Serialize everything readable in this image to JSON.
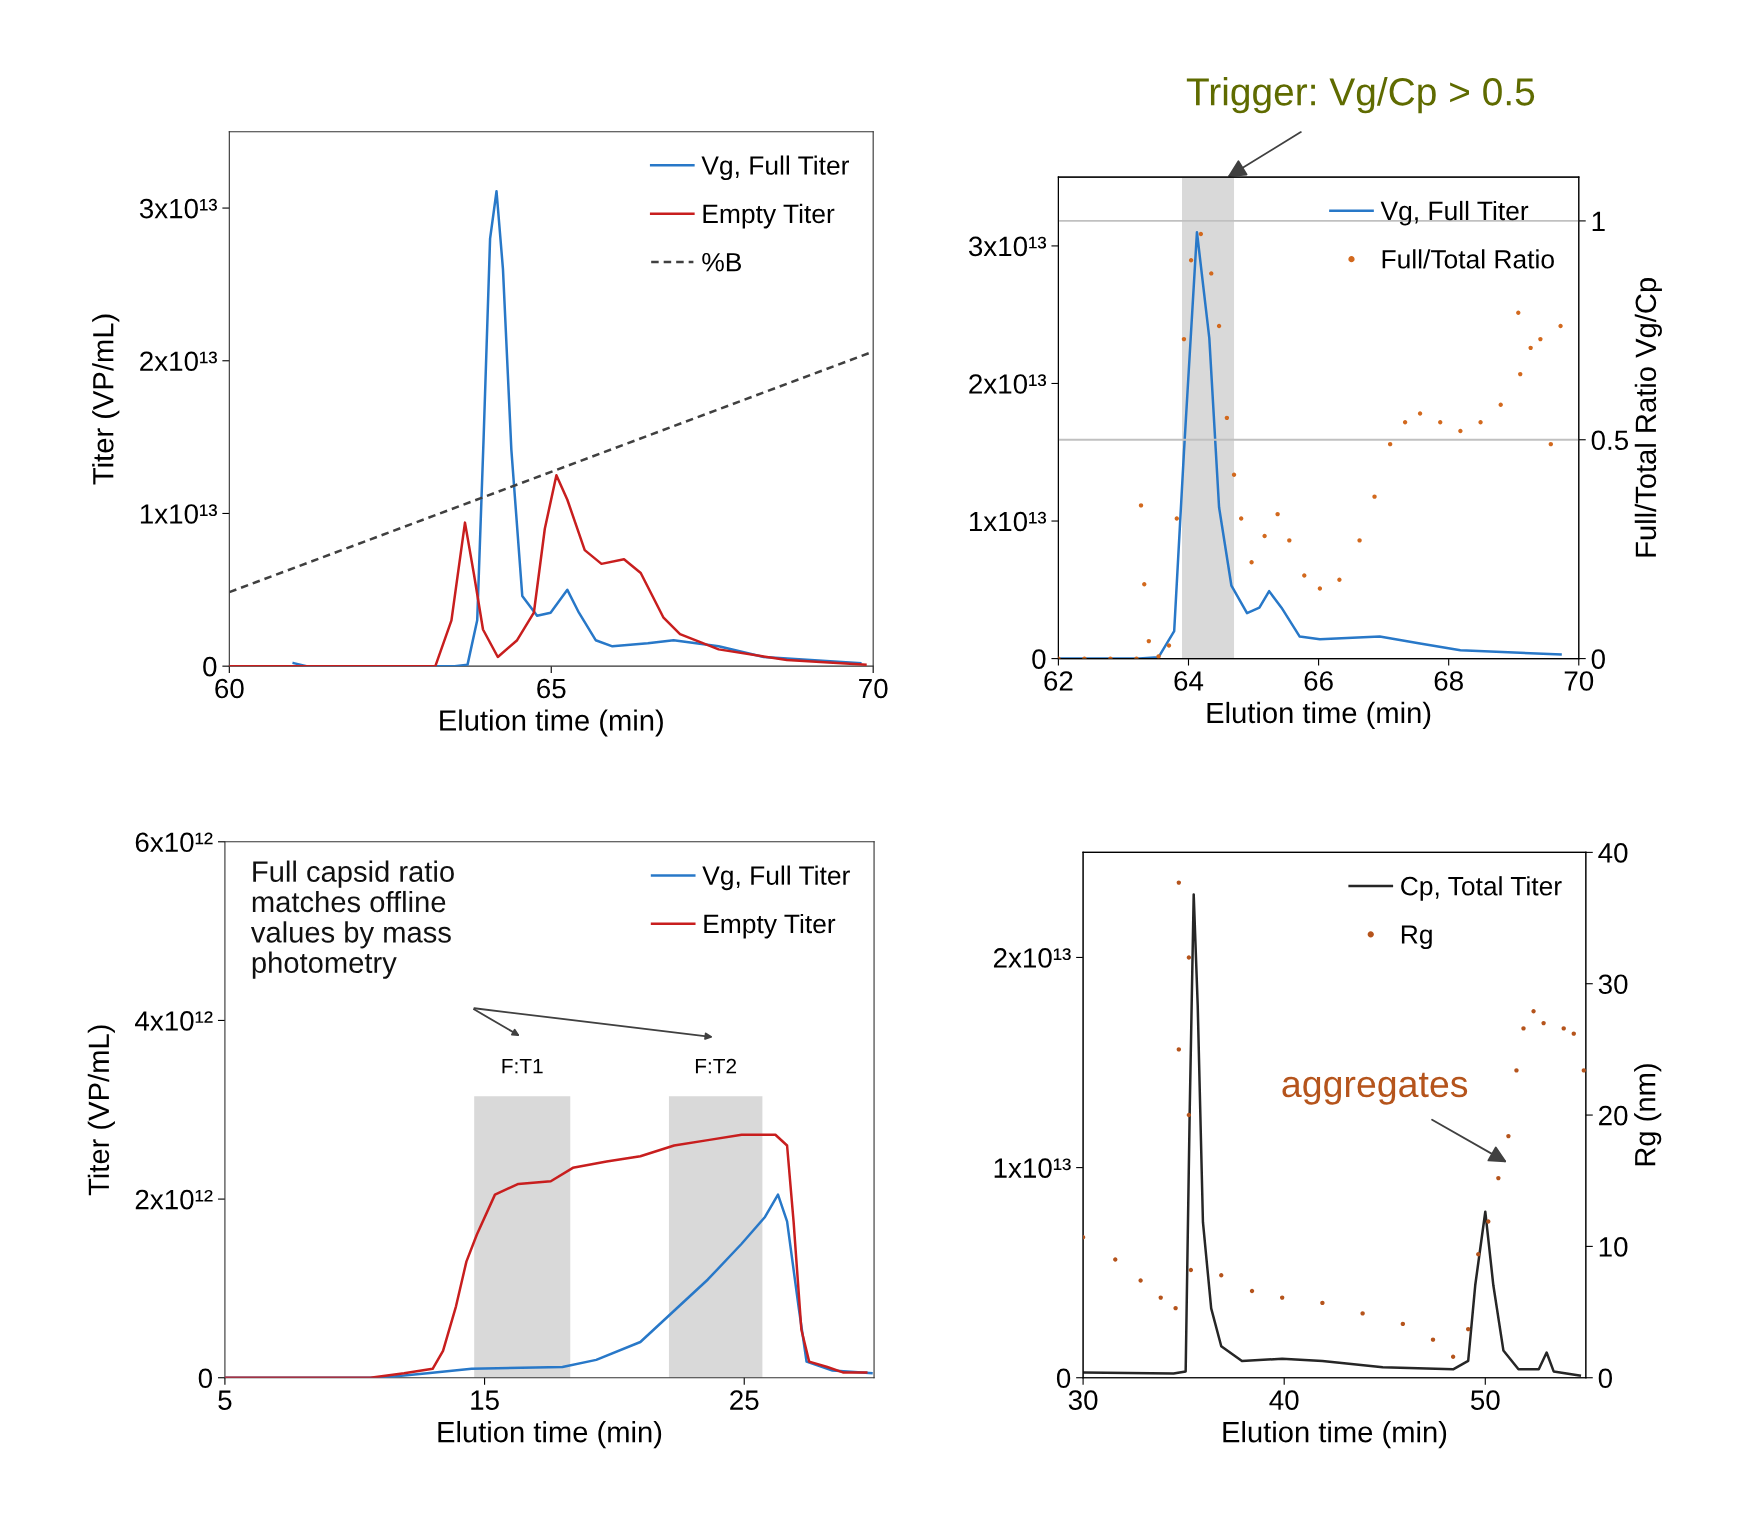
{
  "chart_data": [
    {
      "type": "line",
      "xlabel": "Elution time (min)",
      "ylabel": "Titer (VP/mL)",
      "xlim": [
        60,
        70
      ],
      "xticks": [
        60,
        65,
        70
      ],
      "ylim": [
        0,
        35000000000000.0
      ],
      "yticks": [
        0,
        {
          "value": 10000000000000.0,
          "label": "1x10¹³"
        },
        {
          "value": 20000000000000.0,
          "label": "2x10¹³"
        },
        {
          "value": 30000000000000.0,
          "label": "3x10¹³"
        }
      ],
      "legend": "top right",
      "series": [
        {
          "name": "Vg, Full Titer",
          "color": "#2878c8",
          "x": [
            61,
            61.2,
            63.5,
            63.7,
            63.85,
            63.95,
            64.05,
            64.15,
            64.25,
            64.38,
            64.55,
            64.78,
            64.99,
            65.25,
            65.43,
            65.69,
            65.95,
            66.5,
            66.9,
            67.6,
            68.3,
            69.8
          ],
          "values": [
            200000000000.0,
            0,
            0,
            100000000000.0,
            3000000000000.0,
            15000000000000.0,
            28000000000000.0,
            31100000000000.0,
            26000000000000.0,
            14200000000000.0,
            4600000000000.0,
            3300000000000.0,
            3500000000000.0,
            5000000000000.0,
            3500000000000.0,
            1700000000000.0,
            1300000000000.0,
            1500000000000.0,
            1700000000000.0,
            1300000000000.0,
            600000000000.0,
            200000000000.0
          ]
        },
        {
          "name": "Empty Titer",
          "color": "#c81e1e",
          "x": [
            60,
            63.2,
            63.45,
            63.66,
            63.8,
            63.94,
            64.17,
            64.47,
            64.73,
            64.9,
            65.08,
            65.25,
            65.52,
            65.78,
            66.13,
            66.39,
            66.74,
            67.0,
            67.6,
            68.66,
            69.88
          ],
          "values": [
            0,
            0,
            3000000000000.0,
            9400000000000.0,
            6000000000000.0,
            2400000000000.0,
            600000000000.0,
            1700000000000.0,
            3500000000000.0,
            9000000000000.0,
            12500000000000.0,
            10900000000000.0,
            7600000000000.0,
            6700000000000.0,
            7000000000000.0,
            6100000000000.0,
            3200000000000.0,
            2100000000000.0,
            1100000000000.0,
            400000000000.0,
            100000000000.0
          ]
        },
        {
          "name": "%B",
          "color": "#404040",
          "line_style": "dashed",
          "x": [
            60,
            70
          ],
          "values": [
            4850000000000.0,
            20600000000000.0
          ]
        }
      ]
    },
    {
      "type": "line",
      "xlabel": "Elution time (min)",
      "y2label": "Full/Total Ratio Vg/Cp",
      "xlim": [
        62,
        70
      ],
      "xticks": [
        62,
        64,
        66,
        68,
        70
      ],
      "ylim": [
        0,
        35000000000000.0
      ],
      "yticks": [
        0,
        {
          "value": 10000000000000.0,
          "label": "1x10¹³"
        },
        {
          "value": 20000000000000.0,
          "label": "2x10¹³"
        },
        {
          "value": 30000000000000.0,
          "label": "3x10¹³"
        }
      ],
      "y2lim": [
        0,
        1.1
      ],
      "y2ticks": [
        0,
        0.5,
        1
      ],
      "legend": "top right",
      "annotations": [
        {
          "text": "Trigger: Vg/Cp > 0.5",
          "x": 64.6,
          "y": 35000000000000.0
        }
      ],
      "bands": [
        {
          "axis": "x",
          "from": 63.9,
          "to": 64.7,
          "color": "#d9d9d9"
        }
      ],
      "ref_lines": [
        {
          "axis": "y2",
          "value": 1,
          "color": "#c0c0c0"
        },
        {
          "axis": "y2",
          "value": 0.5,
          "color": "#c0c0c0"
        }
      ],
      "series": [
        {
          "name": "Vg, Full Titer",
          "color": "#2878c8",
          "x": [
            62,
            63.24,
            63.54,
            63.78,
            63.93,
            64.13,
            64.32,
            64.47,
            64.66,
            64.9,
            65.09,
            65.24,
            65.43,
            65.71,
            66.02,
            66.94,
            67.56,
            68.18,
            69.72
          ],
          "values": [
            0,
            0,
            100000000000.0,
            2000000000000.0,
            15000000000000.0,
            31000000000000.0,
            23300000000000.0,
            11000000000000.0,
            5300000000000.0,
            3300000000000.0,
            3700000000000.0,
            4900000000000.0,
            3700000000000.0,
            1600000000000.0,
            1400000000000.0,
            1600000000000.0,
            1100000000000.0,
            600000000000.0,
            300000000000.0
          ]
        },
        {
          "name": "Full/Total Ratio",
          "type": "scatter",
          "axis": "y2",
          "marker": "circle",
          "color": "#d2691e",
          "x": [
            62,
            62.4,
            62.8,
            63.2,
            63.27,
            63.32,
            63.39,
            63.54,
            63.7,
            63.82,
            63.93,
            64.04,
            64.19,
            64.35,
            64.47,
            64.59,
            64.7,
            64.81,
            64.97,
            65.17,
            65.37,
            65.55,
            65.78,
            66.02,
            66.32,
            66.63,
            66.86,
            67.1,
            67.33,
            67.56,
            67.87,
            68.18,
            68.49,
            68.8,
            69.07,
            69.1,
            69.26,
            69.41,
            69.57,
            69.72
          ],
          "values": [
            0,
            0,
            0,
            0,
            0.35,
            0.17,
            0.04,
            0.005,
            0.03,
            0.32,
            0.73,
            0.91,
            0.97,
            0.88,
            0.76,
            0.55,
            0.42,
            0.32,
            0.22,
            0.28,
            0.33,
            0.27,
            0.19,
            0.16,
            0.18,
            0.27,
            0.37,
            0.49,
            0.54,
            0.56,
            0.54,
            0.52,
            0.54,
            0.58,
            0.79,
            0.65,
            0.71,
            0.73,
            0.49,
            0.76
          ]
        }
      ]
    },
    {
      "type": "line",
      "xlabel": "Elution time (min)",
      "ylabel": "Titer (VP/mL)",
      "xlim": [
        5,
        30
      ],
      "xticks": [
        5,
        15,
        25
      ],
      "ylim": [
        0,
        6000000000000.0
      ],
      "yticks": [
        0,
        {
          "value": 2000000000000.0,
          "label": "2x10¹²"
        },
        {
          "value": 4000000000000.0,
          "label": "4x10¹²"
        },
        {
          "value": 6000000000000.0,
          "label": "6x10¹²"
        }
      ],
      "legend": "top right",
      "annotations": [
        "Full capsid ratio\nmatches offline\nvalues by mass\nphotometry"
      ],
      "bands": [
        {
          "axis": "x",
          "from": 14.6,
          "to": 18.3,
          "label": "F:T1",
          "color": "#d9d9d9"
        },
        {
          "axis": "x",
          "from": 22.1,
          "to": 25.7,
          "label": "F:T2",
          "color": "#d9d9d9"
        }
      ],
      "series": [
        {
          "name": "Vg, Full Titer",
          "color": "#2878c8",
          "x": [
            5,
            11,
            12.8,
            14.5,
            18.0,
            19.3,
            21.0,
            22.3,
            23.6,
            24.9,
            25.8,
            26.3,
            26.65,
            27.1,
            27.4,
            28.4,
            29.9
          ],
          "values": [
            0,
            0,
            50000000000.0,
            100000000000.0,
            120000000000.0,
            200000000000.0,
            400000000000.0,
            750000000000.0,
            1100000000000.0,
            1500000000000.0,
            1800000000000.0,
            2050000000000.0,
            1750000000000.0,
            780000000000.0,
            180000000000.0,
            80000000000.0,
            50000000000.0
          ]
        },
        {
          "name": "Empty Titer",
          "color": "#c81e1e",
          "x": [
            5,
            10.6,
            11.9,
            13.0,
            13.4,
            13.9,
            14.3,
            14.7,
            15.4,
            16.3,
            17.55,
            18.4,
            19.7,
            21.0,
            22.3,
            23.6,
            24.9,
            26.2,
            26.65,
            26.9,
            27.2,
            27.5,
            28.2,
            28.8,
            29.7
          ],
          "values": [
            0,
            0,
            50000000000.0,
            100000000000.0,
            300000000000.0,
            800000000000.0,
            1300000000000.0,
            1600000000000.0,
            2050000000000.0,
            2170000000000.0,
            2200000000000.0,
            2350000000000.0,
            2420000000000.0,
            2480000000000.0,
            2600000000000.0,
            2660000000000.0,
            2720000000000.0,
            2720000000000.0,
            2600000000000.0,
            1750000000000.0,
            540000000000.0,
            180000000000.0,
            120000000000.0,
            60000000000.0,
            60000000000.0
          ]
        }
      ]
    },
    {
      "type": "line",
      "xlabel": "Elution time (min)",
      "y2label": "Rg (nm)",
      "xlim": [
        30,
        55
      ],
      "xticks": [
        30,
        40,
        50
      ],
      "ylim": [
        0,
        25000000000000.0
      ],
      "yticks": [
        0,
        {
          "value": 10000000000000.0,
          "label": "1x10¹³"
        },
        {
          "value": 20000000000000.0,
          "label": "2x10¹³"
        }
      ],
      "y2lim": [
        0,
        40
      ],
      "y2ticks": [
        0,
        10,
        20,
        30,
        40
      ],
      "legend": "top right",
      "annotations": [
        "aggregates"
      ],
      "series": [
        {
          "name": "Cp, Total Titer",
          "color": "#262626",
          "x": [
            30,
            34.5,
            35.1,
            35.3,
            35.5,
            35.7,
            35.96,
            36.37,
            36.87,
            37.9,
            39.9,
            41.9,
            44.9,
            48.4,
            49.15,
            49.5,
            50.0,
            50.4,
            50.9,
            51.65,
            52.66,
            53.05,
            53.4,
            54.7
          ],
          "values": [
            250000000000.0,
            200000000000.0,
            300000000000.0,
            12600000000000.0,
            23000000000000.0,
            17700000000000.0,
            7400000000000.0,
            3300000000000.0,
            1500000000000.0,
            800000000000.0,
            900000000000.0,
            800000000000.0,
            500000000000.0,
            400000000000.0,
            800000000000.0,
            4400000000000.0,
            7900000000000.0,
            4400000000000.0,
            1300000000000.0,
            400000000000.0,
            400000000000.0,
            1200000000000.0,
            300000000000.0,
            100000000000.0
          ]
        },
        {
          "name": "Rg",
          "type": "scatter",
          "axis": "y2",
          "marker": "circle",
          "color": "#b5541c",
          "x": [
            30,
            31.6,
            32.86,
            33.86,
            34.6,
            34.76,
            34.76,
            35.26,
            35.26,
            35.36,
            36.87,
            38.4,
            39.9,
            41.9,
            43.9,
            45.9,
            47.4,
            48.4,
            49.15,
            49.65,
            50.15,
            50.65,
            51.15,
            51.55,
            51.9,
            52.4,
            52.9,
            53.9,
            54.4,
            54.9
          ],
          "values": [
            10.7,
            9.0,
            7.4,
            6.1,
            5.3,
            37.7,
            25,
            32,
            20,
            8.2,
            7.8,
            6.6,
            6.1,
            5.7,
            4.9,
            4.1,
            2.9,
            1.6,
            3.7,
            9.4,
            11.9,
            15.2,
            18.4,
            23.4,
            26.6,
            27.9,
            27.0,
            26.6,
            26.2,
            23.4
          ]
        }
      ]
    }
  ]
}
